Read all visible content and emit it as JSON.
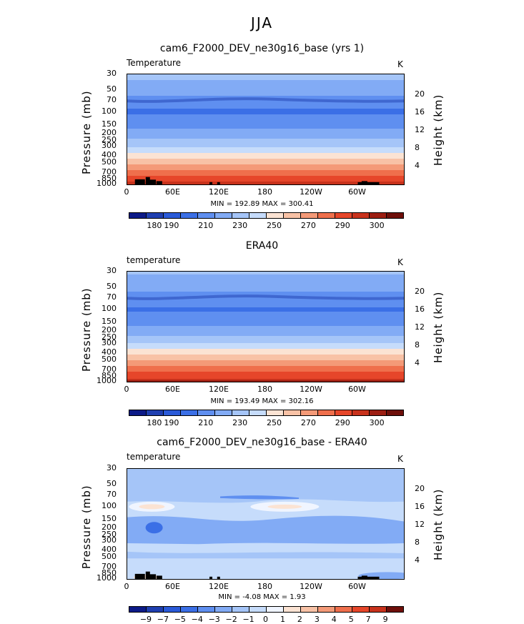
{
  "figure_title": "JJA",
  "panels": [
    {
      "title": "cam6_F2000_DEV_ne30g16_base (yrs 1)",
      "field": "Temperature",
      "unit": "K",
      "minmax": "MIN = 192.89   MAX = 300.41",
      "colorbar_labels": [
        "180",
        "190",
        "210",
        "230",
        "250",
        "270",
        "290",
        "300"
      ]
    },
    {
      "title": "ERA40",
      "field": "temperature",
      "unit": "K",
      "minmax": "MIN = 193.49   MAX = 302.16",
      "colorbar_labels": [
        "180",
        "190",
        "210",
        "230",
        "250",
        "270",
        "290",
        "300"
      ]
    },
    {
      "title": "cam6_F2000_DEV_ne30g16_base - ERA40",
      "field": "temperature",
      "unit": "K",
      "minmax": "MIN =  -4.08   MAX =   1.93",
      "colorbar_labels": [
        "−9",
        "−7",
        "−5",
        "−4",
        "−3",
        "−2",
        "−1",
        "0",
        "1",
        "2",
        "3",
        "4",
        "5",
        "7",
        "9"
      ]
    }
  ],
  "axes": {
    "y_left_label": "Pressure (mb)",
    "y_right_label": "Height (km)",
    "pressure_ticks": [
      "30",
      "50",
      "70",
      "100",
      "150",
      "200",
      "250",
      "300",
      "400",
      "500",
      "700",
      "850",
      "1000"
    ],
    "height_ticks": [
      "20",
      "16",
      "12",
      "8",
      "4"
    ],
    "x_ticks": [
      "0",
      "60E",
      "120E",
      "180",
      "120W",
      "60W"
    ]
  },
  "chart_data": [
    {
      "type": "heatmap",
      "title": "cam6_F2000_DEV_ne30g16_base (yrs 1)",
      "field": "Temperature",
      "unit": "K",
      "x": [
        0,
        60,
        120,
        180,
        240,
        300
      ],
      "ylabel": "Pressure (mb)",
      "ylabel_right": "Height (km)",
      "y_scale": "log",
      "ylim": [
        1000,
        30
      ],
      "profile_levels_mb": [
        30,
        50,
        70,
        100,
        150,
        200,
        250,
        300,
        400,
        500,
        700,
        850,
        1000
      ],
      "profile_values_K": [
        223,
        214,
        205,
        198,
        207,
        215,
        222,
        230,
        245,
        258,
        276,
        286,
        295
      ],
      "min": 192.89,
      "max": 300.41,
      "colorbar_levels": [
        180,
        185,
        190,
        200,
        210,
        220,
        230,
        240,
        250,
        260,
        270,
        280,
        290,
        295,
        300
      ],
      "colors": [
        "#0c1a87",
        "#1f3fb0",
        "#2a5ad8",
        "#3b6fe6",
        "#5f8ff0",
        "#82abf5",
        "#a5c5f8",
        "#c6dcfb",
        "#fbe3d3",
        "#f8c2a6",
        "#f49a78",
        "#ef6f4c",
        "#e6462a",
        "#c8321c",
        "#9c1e12",
        "#6e0f0a"
      ]
    },
    {
      "type": "heatmap",
      "title": "ERA40",
      "field": "temperature",
      "unit": "K",
      "x": [
        0,
        60,
        120,
        180,
        240,
        300
      ],
      "ylabel": "Pressure (mb)",
      "ylabel_right": "Height (km)",
      "y_scale": "log",
      "ylim": [
        1000,
        30
      ],
      "profile_levels_mb": [
        30,
        50,
        70,
        100,
        150,
        200,
        250,
        300,
        400,
        500,
        700,
        850,
        1000
      ],
      "profile_values_K": [
        222,
        213,
        205,
        199,
        207,
        215,
        223,
        231,
        246,
        259,
        277,
        287,
        297
      ],
      "min": 193.49,
      "max": 302.16,
      "colorbar_levels": [
        180,
        185,
        190,
        200,
        210,
        220,
        230,
        240,
        250,
        260,
        270,
        280,
        290,
        295,
        300
      ]
    },
    {
      "type": "heatmap",
      "title": "cam6_F2000_DEV_ne30g16_base - ERA40",
      "field": "temperature",
      "unit": "K",
      "x": [
        0,
        60,
        120,
        180,
        240,
        300
      ],
      "ylabel": "Pressure (mb)",
      "ylabel_right": "Height (km)",
      "y_scale": "log",
      "ylim": [
        1000,
        30
      ],
      "min": -4.08,
      "max": 1.93,
      "colorbar_levels": [
        -9,
        -7,
        -5,
        -4,
        -3,
        -2,
        -1,
        0,
        1,
        2,
        3,
        4,
        5,
        7,
        9
      ],
      "colors": [
        "#0c1a87",
        "#1f3fb0",
        "#2a5ad8",
        "#3b6fe6",
        "#5f8ff0",
        "#82abf5",
        "#a5c5f8",
        "#c6dcfb",
        "#f0f5ff",
        "#fbe3d3",
        "#f8c2a6",
        "#f49a78",
        "#ef6f4c",
        "#e6462a",
        "#c8321c",
        "#6e0f0a"
      ]
    }
  ]
}
